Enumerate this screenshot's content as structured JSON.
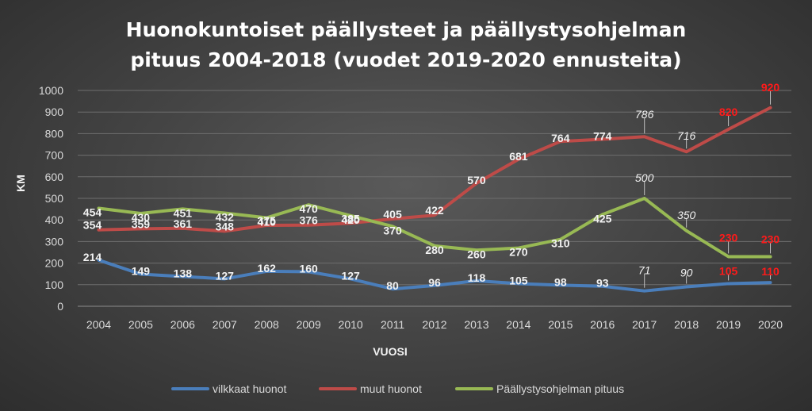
{
  "chart_data": {
    "type": "line",
    "title_line1": "Huonokuntoiset päällysteet ja päällystysohjelman",
    "title_line2": "pituus 2004-2018 (vuodet 2019-2020 ennusteita)",
    "xlabel": "VUOSI",
    "ylabel": "KM",
    "ylim": [
      0,
      1000
    ],
    "yticks": [
      "0",
      "100",
      "200",
      "300",
      "400",
      "500",
      "600",
      "700",
      "800",
      "900",
      "1000"
    ],
    "categories": [
      "2004",
      "2005",
      "2006",
      "2007",
      "2008",
      "2009",
      "2010",
      "2011",
      "2012",
      "2013",
      "2014",
      "2015",
      "2016",
      "2017",
      "2018",
      "2019",
      "2020"
    ],
    "grid": true,
    "legend_position": "bottom",
    "series": [
      {
        "name": "vilkkaat huonot",
        "color": "#4a7ebb",
        "values": [
          214,
          149,
          138,
          127,
          162,
          160,
          127,
          80,
          96,
          118,
          105,
          98,
          93,
          71,
          90,
          105,
          110
        ]
      },
      {
        "name": "muut huonot",
        "color": "#be4b48",
        "values": [
          354,
          359,
          361,
          348,
          375,
          376,
          385,
          405,
          422,
          570,
          681,
          764,
          774,
          786,
          716,
          820,
          920
        ]
      },
      {
        "name": "Päällystysohjelman pituus",
        "color": "#98b954",
        "values": [
          454,
          430,
          451,
          432,
          410,
          470,
          420,
          370,
          280,
          260,
          270,
          310,
          425,
          500,
          350,
          230,
          230
        ]
      }
    ]
  }
}
